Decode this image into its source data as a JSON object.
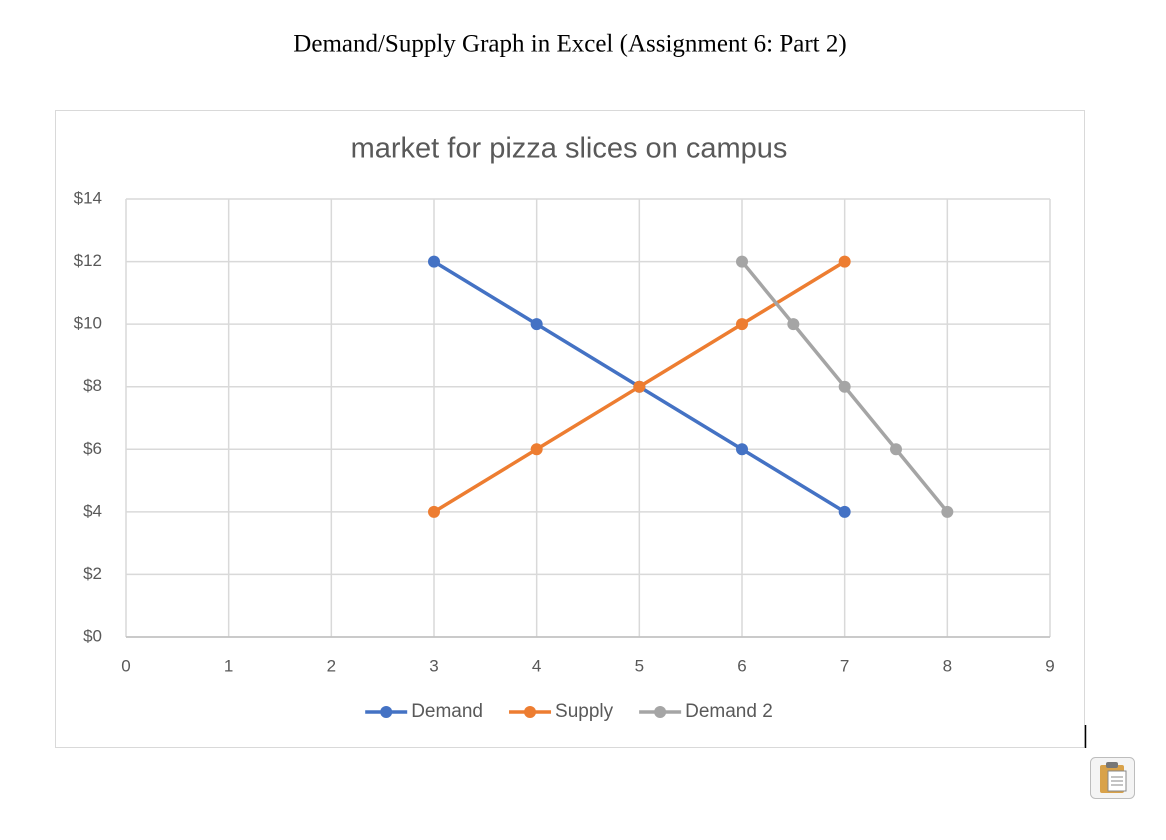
{
  "header": {
    "title": "Demand/Supply Graph in Excel (Assignment 6: Part 2)"
  },
  "chart_data": {
    "type": "line",
    "title": "market for pizza slices on campus",
    "series": [
      {
        "name": "Demand",
        "color": "#4472c4",
        "x": [
          3,
          4,
          5,
          6,
          7
        ],
        "values": [
          12,
          10,
          8,
          6,
          4
        ]
      },
      {
        "name": "Supply",
        "color": "#ed7d31",
        "x": [
          3,
          4,
          5,
          6,
          7
        ],
        "values": [
          4,
          6,
          8,
          10,
          12
        ]
      },
      {
        "name": "Demand 2",
        "color": "#a5a5a5",
        "x": [
          6,
          6.5,
          7,
          7.5,
          8
        ],
        "values": [
          12,
          10,
          8,
          6,
          4
        ]
      }
    ],
    "xlim": [
      0,
      9
    ],
    "xticks": [
      0,
      1,
      2,
      3,
      4,
      5,
      6,
      7,
      8,
      9
    ],
    "ylim": [
      0,
      14
    ],
    "yticks": [
      {
        "value": 0,
        "label": "$0"
      },
      {
        "value": 2,
        "label": "$2"
      },
      {
        "value": 4,
        "label": "$4"
      },
      {
        "value": 6,
        "label": "$6"
      },
      {
        "value": 8,
        "label": "$8"
      },
      {
        "value": 10,
        "label": "$10"
      },
      {
        "value": 12,
        "label": "$12"
      },
      {
        "value": 14,
        "label": "$14"
      }
    ],
    "grid": true,
    "legend": "bottom"
  }
}
